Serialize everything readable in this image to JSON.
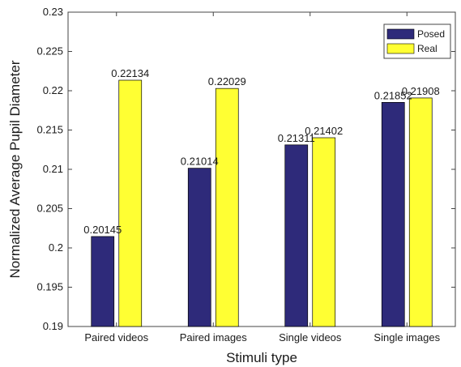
{
  "chart_data": {
    "type": "bar",
    "xlabel": "Stimuli type",
    "ylabel": "Normalized Average Pupil Diameter",
    "categories": [
      "Paired videos",
      "Paired images",
      "Single videos",
      "Single images"
    ],
    "series": [
      {
        "name": "Posed",
        "color": "#2e2a7a",
        "values": [
          0.20145,
          0.21014,
          0.21311,
          0.21852
        ],
        "labels": [
          "0.20145",
          "0.21014",
          "0.21311",
          "0.21852"
        ]
      },
      {
        "name": "Real",
        "color": "#ffff33",
        "values": [
          0.22134,
          0.22029,
          0.21402,
          0.21908
        ],
        "labels": [
          "0.22134",
          "0.22029",
          "0.21402",
          "0.21908"
        ]
      }
    ],
    "ylim": [
      0.19,
      0.23
    ],
    "yticks": [
      0.19,
      0.195,
      0.2,
      0.205,
      0.21,
      0.215,
      0.22,
      0.225,
      0.23
    ],
    "ytick_labels": [
      "0.19",
      "0.195",
      "0.2",
      "0.205",
      "0.21",
      "0.215",
      "0.22",
      "0.225",
      "0.23"
    ],
    "grid": false,
    "legend_position": "top-right"
  }
}
